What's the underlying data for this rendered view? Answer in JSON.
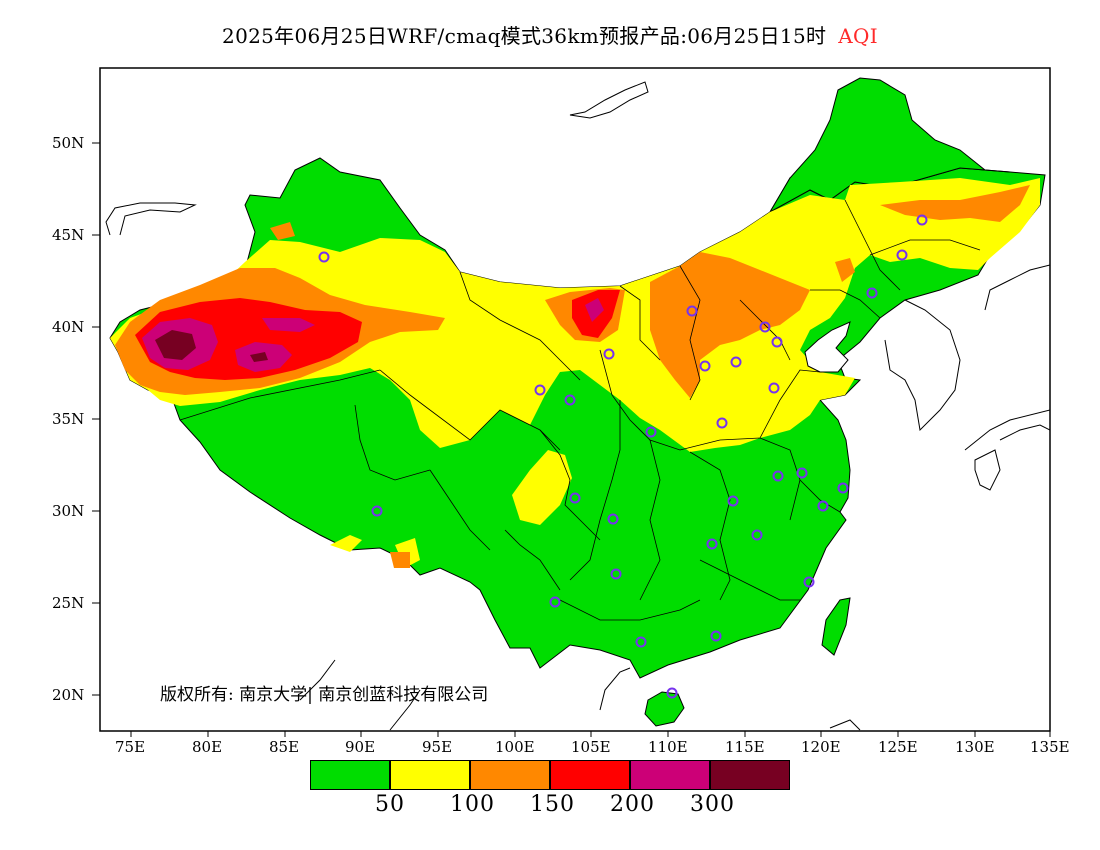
{
  "title": {
    "main": "2025年06月25日WRF/cmaq模式36km预报产品:06月25日15时",
    "variable": "AQI"
  },
  "axes": {
    "lat_labels": [
      "50N",
      "45N",
      "40N",
      "35N",
      "30N",
      "25N",
      "20N"
    ],
    "lon_labels": [
      "75E",
      "80E",
      "85E",
      "90E",
      "95E",
      "100E",
      "105E",
      "110E",
      "115E",
      "120E",
      "125E",
      "130E",
      "135E"
    ]
  },
  "colors": {
    "good": "#00dd00",
    "moderate": "#ffff00",
    "usg": "#ff8800",
    "unhealthy": "#ff0000",
    "very_unhealthy": "#cc0077",
    "hazardous": "#770022",
    "station": "#7733ee"
  },
  "legend": {
    "colors": [
      "#00dd00",
      "#ffff00",
      "#ff8800",
      "#ff0000",
      "#cc0077",
      "#770022"
    ],
    "labels": [
      "50",
      "100",
      "150",
      "200",
      "300"
    ]
  },
  "copyright": "版权所有: 南京大学| 南京创蓝科技有限公司"
}
